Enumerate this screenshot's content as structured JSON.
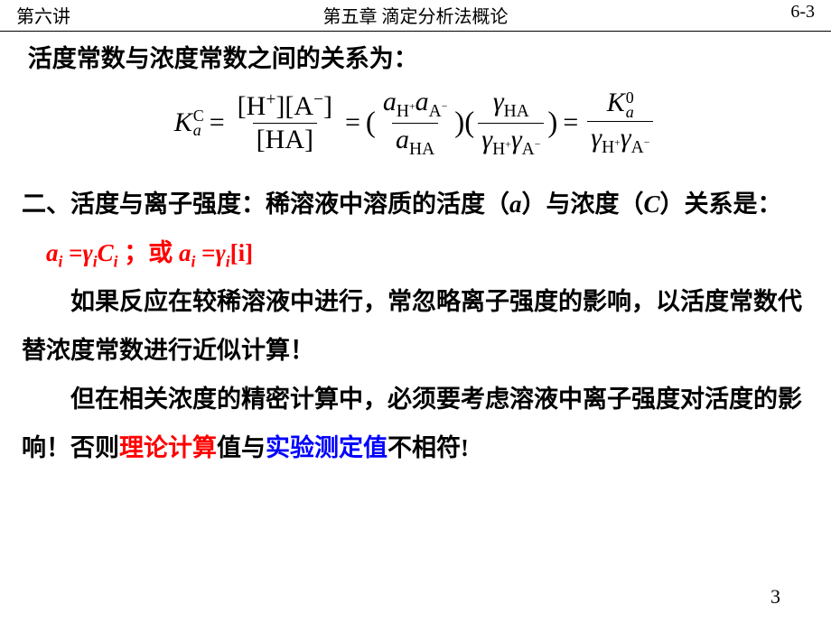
{
  "header": {
    "left": "第六讲",
    "center": "第五章    滴定分析法概论",
    "right": "6-3"
  },
  "line1": {
    "part1": "活度常数",
    "part2": "与",
    "part3": "浓度常数",
    "part4": "之间的关系为："
  },
  "equation": {
    "K": "K",
    "a_sub": "a",
    "C_sup": "C",
    "eq": "=",
    "H": "H",
    "A": "A",
    "HA": "HA",
    "plus": "+",
    "minus": "−",
    "a_var": "a",
    "gamma": "γ",
    "zero": "0",
    "lparen": "(",
    "rparen": ")",
    "lbrack": "[",
    "rbrack": "]"
  },
  "section2": {
    "heading_pre": "二、活度与离子强度：",
    "heading_mid1": "稀溶液中溶质的",
    "heading_b1": "活度（",
    "a_ital": "a",
    "heading_b2": "）",
    "heading_mid2": "与",
    "heading_b3": "浓度（",
    "C_ital": "C",
    "heading_b4": "）",
    "heading_mid3": "关系是：",
    "formula1_pre": "a",
    "formula1_sub": "i",
    "formula1_eq": " =",
    "formula1_g": "γ",
    "formula1_C": "C",
    "formula1_sep": " ；或 ",
    "formula2_br_l": "[",
    "formula2_i": "i",
    "formula2_br_r": "]"
  },
  "para1": "如果反应在较稀溶液中进行，常忽略离子强度的影响，以活度常数代替浓度常数进行近似计算！",
  "para2": {
    "t1": "但在相关浓度的",
    "b1": "精密计算",
    "t2": "中，必须要考虑溶液中离子强度对活度的影响！否则",
    "red": "理论计算",
    "t3": "值与",
    "blue": "实验测定值",
    "t4": "不相符!"
  },
  "page_number": "3"
}
